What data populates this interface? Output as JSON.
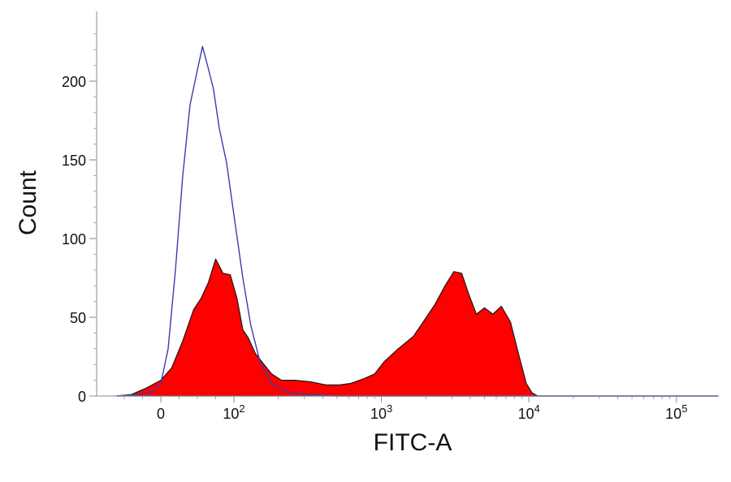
{
  "chart_data": {
    "type": "area",
    "xlabel": "FITC-A",
    "ylabel": "Count",
    "x_scale": "biexponential",
    "xlim": [
      -60,
      200000
    ],
    "ylim": [
      0,
      230
    ],
    "grid": false,
    "legend": "none",
    "x_ticks": [
      {
        "value": 0,
        "base": "0",
        "exp": ""
      },
      {
        "value": 100,
        "base": "10",
        "exp": "2"
      },
      {
        "value": 1000,
        "base": "10",
        "exp": "3"
      },
      {
        "value": 10000,
        "base": "10",
        "exp": "4"
      },
      {
        "value": 100000,
        "base": "10",
        "exp": "5"
      }
    ],
    "y_ticks": [
      0,
      50,
      100,
      150,
      200
    ],
    "series": [
      {
        "style": "outline",
        "color": "#3b3bb0",
        "points": [
          [
            -60,
            0
          ],
          [
            -30,
            1
          ],
          [
            -10,
            3
          ],
          [
            0,
            8
          ],
          [
            10,
            30
          ],
          [
            20,
            80
          ],
          [
            30,
            140
          ],
          [
            40,
            185
          ],
          [
            50,
            207
          ],
          [
            57,
            222
          ],
          [
            65,
            208
          ],
          [
            72,
            195
          ],
          [
            80,
            170
          ],
          [
            90,
            148
          ],
          [
            100,
            115
          ],
          [
            115,
            75
          ],
          [
            130,
            45
          ],
          [
            150,
            22
          ],
          [
            180,
            8
          ],
          [
            220,
            3
          ],
          [
            300,
            1
          ],
          [
            500,
            0
          ],
          [
            1000,
            0
          ],
          [
            10000,
            0
          ],
          [
            200000,
            0
          ]
        ]
      },
      {
        "style": "filled",
        "color": "#ff0000",
        "stroke": "#1a1a1a",
        "points": [
          [
            -60,
            0
          ],
          [
            -40,
            1
          ],
          [
            -20,
            5
          ],
          [
            0,
            10
          ],
          [
            15,
            18
          ],
          [
            30,
            35
          ],
          [
            45,
            55
          ],
          [
            55,
            62
          ],
          [
            65,
            72
          ],
          [
            75,
            87
          ],
          [
            85,
            78
          ],
          [
            95,
            77
          ],
          [
            105,
            62
          ],
          [
            115,
            42
          ],
          [
            125,
            37
          ],
          [
            140,
            27
          ],
          [
            160,
            20
          ],
          [
            180,
            14
          ],
          [
            210,
            10
          ],
          [
            260,
            10
          ],
          [
            330,
            9
          ],
          [
            420,
            7
          ],
          [
            520,
            7
          ],
          [
            620,
            8
          ],
          [
            760,
            11
          ],
          [
            900,
            14
          ],
          [
            1050,
            22
          ],
          [
            1300,
            30
          ],
          [
            1650,
            38
          ],
          [
            1950,
            48
          ],
          [
            2300,
            58
          ],
          [
            2700,
            70
          ],
          [
            3100,
            79
          ],
          [
            3500,
            78
          ],
          [
            3900,
            65
          ],
          [
            4400,
            52
          ],
          [
            5000,
            56
          ],
          [
            5700,
            52
          ],
          [
            6500,
            57
          ],
          [
            7500,
            47
          ],
          [
            8600,
            25
          ],
          [
            9600,
            8
          ],
          [
            10500,
            2
          ],
          [
            11500,
            0
          ],
          [
            200000,
            0
          ]
        ]
      }
    ]
  }
}
